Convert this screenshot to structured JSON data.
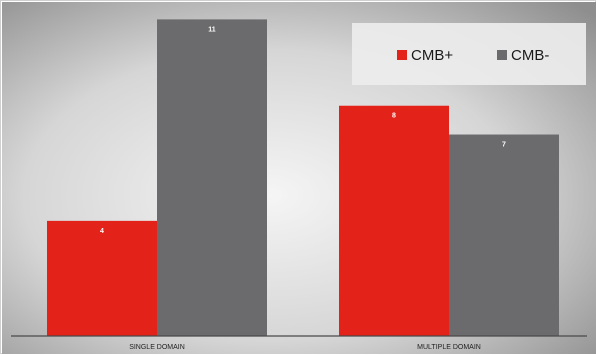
{
  "chart_data": {
    "type": "bar",
    "categories": [
      "SINGLE DOMAIN",
      "MULTIPLE DOMAIN"
    ],
    "series": [
      {
        "name": "CMB+",
        "values": [
          4,
          8
        ],
        "color": "#e32219"
      },
      {
        "name": "CMB-",
        "values": [
          11,
          7
        ],
        "color": "#6b6a6c"
      }
    ],
    "ylim": [
      0,
      11.5
    ],
    "grid": false,
    "legend_position": "top-right",
    "title": "",
    "xlabel": "",
    "ylabel": ""
  }
}
